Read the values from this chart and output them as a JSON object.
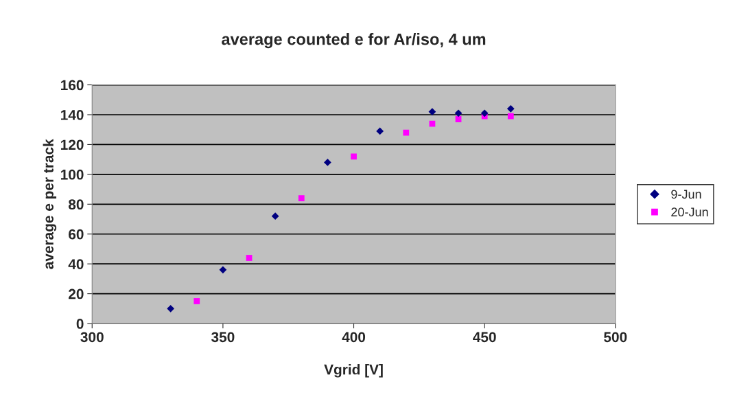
{
  "chart_data": {
    "type": "scatter",
    "title": "average counted e for Ar/iso, 4 um",
    "xlabel": "Vgrid [V]",
    "ylabel": "average e per track",
    "series": [
      {
        "name": "9-Jun",
        "color": "#000080",
        "marker": "diamond",
        "x": [
          330,
          350,
          370,
          390,
          410,
          430,
          440,
          450,
          460
        ],
        "values": [
          10,
          36,
          72,
          108,
          129,
          142,
          141,
          141,
          144
        ]
      },
      {
        "name": "20-Jun",
        "color": "#ff00ff",
        "marker": "square",
        "x": [
          340,
          360,
          380,
          400,
          420,
          430,
          440,
          450,
          460
        ],
        "values": [
          15,
          44,
          84,
          112,
          128,
          134,
          137,
          139,
          139
        ]
      }
    ],
    "xlim": [
      300,
      500
    ],
    "xticks": [
      300,
      350,
      400,
      450,
      500
    ],
    "ylim": [
      0,
      160
    ],
    "yticks": [
      0,
      20,
      40,
      60,
      80,
      100,
      120,
      140,
      160
    ],
    "grid": "y",
    "legend": "right"
  }
}
